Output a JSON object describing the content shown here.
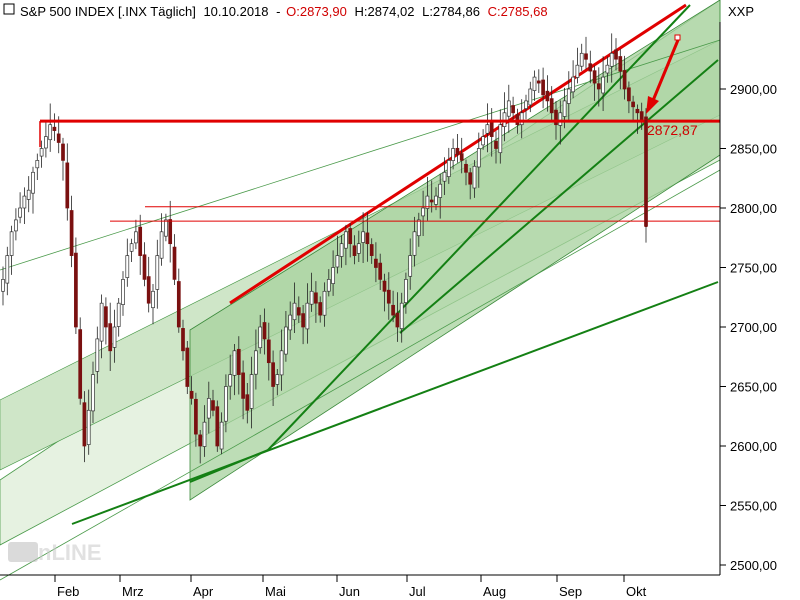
{
  "header": {
    "instrument": "S&P 500 INDEX [.INX  Täglich]",
    "date": "10.10.2018",
    "open": "O:2873,90",
    "high": "H:2874,02",
    "low": "L:2784,86",
    "close": "C:2785,68",
    "symbol": "XXP"
  },
  "watermark": {
    "text": "Tradesignal online"
  },
  "colors": {
    "channel_fill": "#e6f2e1",
    "channel_mid": "#cfe6c8",
    "channel_inner": "#a7d29d",
    "trend_green": "#148014",
    "resistance_red": "#e00000",
    "arrow_red": "#e00000",
    "price_label": "#d00000",
    "up_candle": "#3d7a3d",
    "down_candle": "#7a1010"
  },
  "chart_data": {
    "type": "candlestick",
    "ylim": [
      2490,
      3010
    ],
    "y_ticks": [
      2500,
      2550,
      2600,
      2650,
      2700,
      2750,
      2800,
      2850,
      2900
    ],
    "y_tick_labels": [
      "2500,00",
      "2550,00",
      "2600,00",
      "2650,00",
      "2700,00",
      "2750,00",
      "2800,00",
      "2850,00",
      "2900,00"
    ],
    "x_months": [
      "Feb",
      "Mrz",
      "Apr",
      "Mai",
      "Jun",
      "Jul",
      "Aug",
      "Sep",
      "Okt"
    ],
    "price_label": {
      "text": "2872,87",
      "value": 2872.87
    },
    "series_close": [
      2740,
      2760,
      2780,
      2790,
      2800,
      2810,
      2815,
      2830,
      2840,
      2850,
      2860,
      2870,
      2865,
      2855,
      2840,
      2800,
      2760,
      2700,
      2640,
      2600,
      2630,
      2660,
      2690,
      2720,
      2700,
      2680,
      2700,
      2720,
      2740,
      2760,
      2770,
      2780,
      2760,
      2740,
      2720,
      2730,
      2760,
      2780,
      2790,
      2770,
      2740,
      2700,
      2680,
      2650,
      2640,
      2610,
      2600,
      2620,
      2640,
      2630,
      2600,
      2620,
      2650,
      2660,
      2680,
      2660,
      2640,
      2630,
      2660,
      2680,
      2700,
      2690,
      2670,
      2650,
      2660,
      2680,
      2700,
      2710,
      2720,
      2710,
      2700,
      2720,
      2730,
      2720,
      2710,
      2730,
      2740,
      2750,
      2760,
      2770,
      2780,
      2770,
      2760,
      2770,
      2780,
      2770,
      2760,
      2750,
      2740,
      2730,
      2720,
      2710,
      2700,
      2720,
      2740,
      2760,
      2780,
      2790,
      2800,
      2810,
      2805,
      2810,
      2820,
      2830,
      2840,
      2850,
      2845,
      2840,
      2830,
      2820,
      2835,
      2850,
      2860,
      2870,
      2860,
      2850,
      2870,
      2880,
      2890,
      2880,
      2870,
      2880,
      2890,
      2900,
      2910,
      2905,
      2895,
      2890,
      2880,
      2870,
      2880,
      2890,
      2900,
      2910,
      2920,
      2930,
      2925,
      2915,
      2905,
      2900,
      2910,
      2920,
      2930,
      2925,
      2915,
      2900,
      2890,
      2885,
      2880,
      2873,
      2785
    ],
    "levels": [
      {
        "name": "resistance",
        "value": 2873
      },
      {
        "name": "support",
        "value": 2801
      },
      {
        "name": "support-2",
        "value": 2789
      }
    ]
  }
}
